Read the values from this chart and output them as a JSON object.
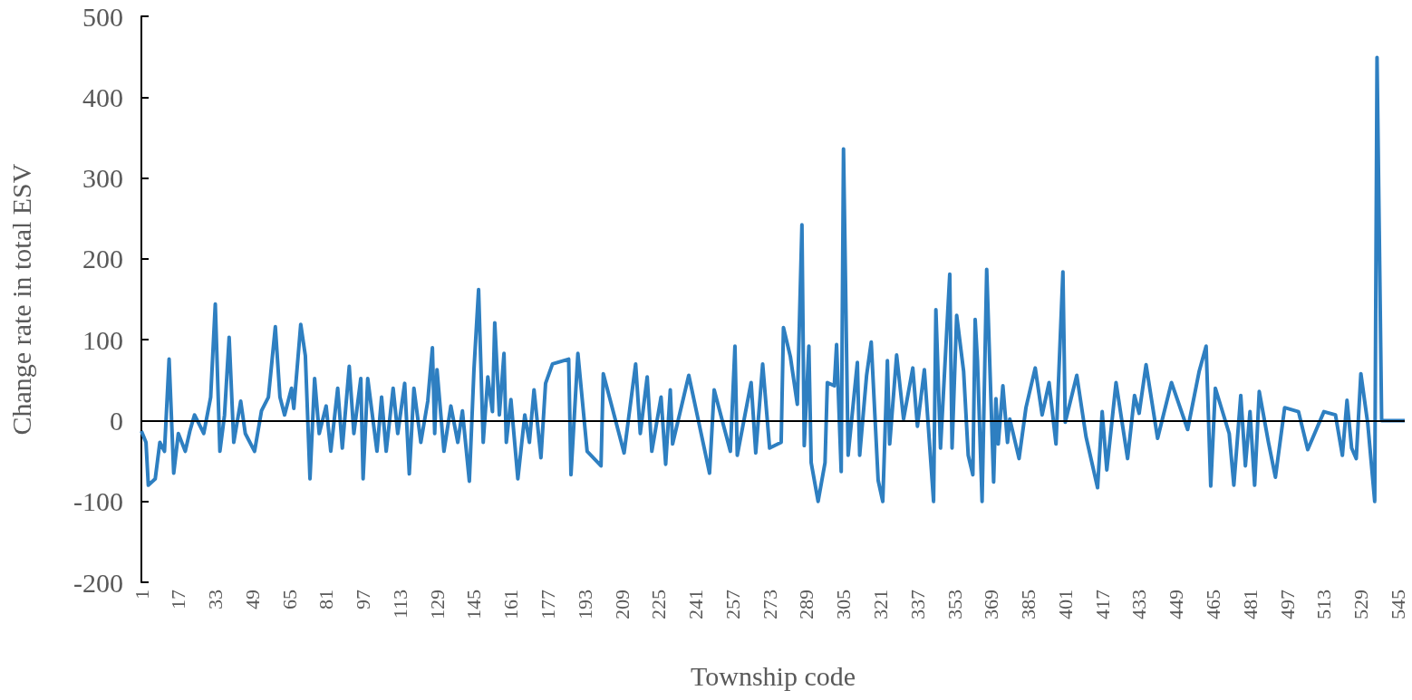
{
  "chart_data": {
    "type": "line",
    "xlabel": "Township code",
    "ylabel": "Change rate in total ESV",
    "xlim": [
      1,
      548
    ],
    "xticks": [
      1,
      17,
      33,
      49,
      65,
      81,
      97,
      113,
      129,
      145,
      161,
      177,
      193,
      209,
      225,
      241,
      257,
      273,
      289,
      305,
      321,
      337,
      353,
      369,
      385,
      401,
      417,
      433,
      449,
      465,
      481,
      497,
      513,
      529,
      545
    ],
    "ylim": [
      -200,
      500
    ],
    "yticks": [
      -200,
      -100,
      0,
      100,
      200,
      300,
      400,
      500
    ],
    "grid": false,
    "marker": "none",
    "line_style": "solid",
    "ref_lines": [
      {
        "axis": "y",
        "value": 0,
        "color": "#000000"
      }
    ],
    "series": [
      {
        "color": "#2e7fc1",
        "x": [
          1,
          3,
          4,
          7,
          9,
          11,
          13,
          15,
          17,
          20,
          22,
          24,
          28,
          31,
          33,
          35,
          37,
          39,
          41,
          44,
          46,
          50,
          53,
          56,
          59,
          61,
          63,
          66,
          67,
          70,
          72,
          74,
          76,
          78,
          81,
          83,
          86,
          88,
          91,
          93,
          96,
          97,
          99,
          103,
          105,
          107,
          110,
          112,
          115,
          117,
          119,
          122,
          125,
          127,
          128,
          129,
          132,
          135,
          138,
          140,
          143,
          145,
          147,
          149,
          151,
          153,
          154,
          156,
          158,
          159,
          161,
          164,
          167,
          169,
          171,
          174,
          176,
          179,
          186,
          187,
          190,
          194,
          200,
          201,
          210,
          215,
          217,
          220,
          222,
          226,
          228,
          230,
          231,
          238,
          247,
          249,
          256,
          258,
          259,
          265,
          267,
          270,
          273,
          278,
          279,
          282,
          285,
          287,
          288,
          290,
          291,
          294,
          297,
          298,
          301,
          302,
          304,
          305,
          307,
          311,
          312,
          315,
          317,
          320,
          322,
          324,
          325,
          328,
          331,
          335,
          337,
          340,
          344,
          345,
          347,
          351,
          352,
          354,
          357,
          359,
          361,
          362,
          363,
          365,
          367,
          370,
          371,
          372,
          374,
          376,
          377,
          381,
          384,
          388,
          391,
          394,
          397,
          400,
          401,
          406,
          410,
          415,
          417,
          419,
          423,
          428,
          431,
          433,
          436,
          441,
          447,
          454,
          459,
          462,
          464,
          466,
          472,
          474,
          477,
          479,
          481,
          483,
          485,
          489,
          492,
          496,
          502,
          506,
          513,
          518,
          521,
          523,
          525,
          527,
          529,
          532,
          535,
          536,
          538,
          548
        ],
        "values": [
          -13,
          -27,
          -80,
          -72,
          -27,
          -38,
          76,
          -65,
          -16,
          -38,
          -13,
          7,
          -16,
          29,
          144,
          -38,
          7,
          103,
          -27,
          24,
          -16,
          -38,
          12,
          29,
          116,
          29,
          7,
          40,
          15,
          119,
          80,
          -72,
          52,
          -16,
          18,
          -38,
          40,
          -34,
          67,
          -16,
          52,
          -72,
          52,
          -38,
          29,
          -38,
          40,
          -16,
          46,
          -66,
          40,
          -27,
          24,
          90,
          -16,
          63,
          -38,
          18,
          -27,
          12,
          -75,
          63,
          162,
          -27,
          54,
          11,
          121,
          7,
          83,
          -27,
          26,
          -72,
          7,
          -27,
          38,
          -46,
          46,
          70,
          76,
          -67,
          83,
          -38,
          -56,
          58,
          -40,
          70,
          -16,
          54,
          -38,
          29,
          -54,
          38,
          -29,
          56,
          -65,
          38,
          -38,
          92,
          -43,
          47,
          -40,
          70,
          -34,
          -27,
          115,
          79,
          20,
          242,
          -31,
          92,
          -52,
          -100,
          -52,
          47,
          43,
          94,
          -63,
          336,
          -43,
          72,
          -43,
          56,
          97,
          -74,
          -100,
          74,
          -29,
          81,
          2,
          65,
          -7,
          63,
          -100,
          137,
          -34,
          181,
          -34,
          130,
          61,
          -43,
          -67,
          125,
          74,
          -100,
          187,
          -76,
          27,
          -29,
          43,
          -27,
          2,
          -47,
          16,
          65,
          7,
          47,
          -29,
          184,
          -2,
          56,
          -20,
          -83,
          11,
          -61,
          47,
          -47,
          31,
          9,
          69,
          -22,
          47,
          -11,
          61,
          92,
          -81,
          40,
          -16,
          -80,
          31,
          -56,
          11,
          -80,
          36,
          -27,
          -70,
          16,
          11,
          -36,
          11,
          7,
          -43,
          25,
          -34,
          -47,
          58,
          -4,
          -100,
          449,
          0,
          0
        ]
      }
    ]
  }
}
